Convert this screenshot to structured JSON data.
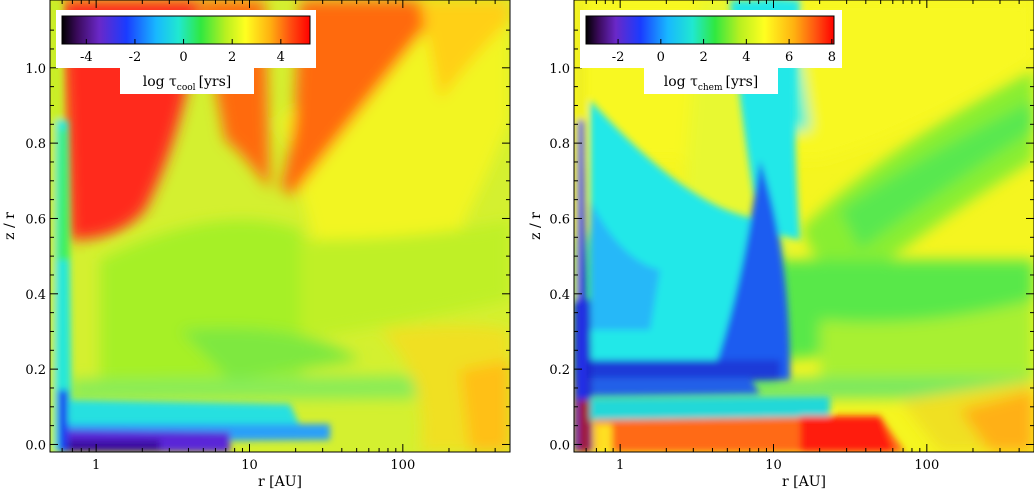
{
  "chart_data": [
    {
      "type": "heatmap",
      "title": "",
      "xlabel": "r [AU]",
      "ylabel": "z / r",
      "x_scale": "log",
      "x_ticks": [
        {
          "value": 1,
          "label": "1"
        },
        {
          "value": 10,
          "label": "10"
        },
        {
          "value": 100,
          "label": "100"
        }
      ],
      "y_ticks": [
        {
          "value": 0.0,
          "label": "0.0"
        },
        {
          "value": 0.2,
          "label": "0.2"
        },
        {
          "value": 0.4,
          "label": "0.4"
        },
        {
          "value": 0.6,
          "label": "0.6"
        },
        {
          "value": 0.8,
          "label": "0.8"
        },
        {
          "value": 1.0,
          "label": "1.0"
        }
      ],
      "xlim": [
        0.5,
        500
      ],
      "ylim": [
        -0.02,
        1.18
      ],
      "colorbar": {
        "label_main": "log τ",
        "label_sub": "cool",
        "label_unit": "[yrs]",
        "range": [
          -5,
          5.2
        ],
        "ticks": [
          {
            "value": -4,
            "label": "-4"
          },
          {
            "value": -2,
            "label": "-2"
          },
          {
            "value": 0,
            "label": "0"
          },
          {
            "value": 2,
            "label": "2"
          },
          {
            "value": 4,
            "label": "4"
          }
        ],
        "placement": "top-left"
      },
      "regions": [
        {
          "name": "upper-left",
          "value": 4.5,
          "color": "#ff2a1a"
        },
        {
          "name": "upper-right-wedge",
          "value": 3.6,
          "color": "#ff6a10"
        },
        {
          "name": "middle",
          "value": 1.5,
          "color": "#9ff020"
        },
        {
          "name": "midplane-streak",
          "value": -3,
          "color": "#5a22d8"
        },
        {
          "name": "inner-column",
          "value": 0,
          "color": "#20e6d0"
        }
      ]
    },
    {
      "type": "heatmap",
      "title": "",
      "xlabel": "r [AU]",
      "ylabel": "z / r",
      "x_scale": "log",
      "x_ticks": [
        {
          "value": 1,
          "label": "1"
        },
        {
          "value": 10,
          "label": "10"
        },
        {
          "value": 100,
          "label": "100"
        }
      ],
      "y_ticks": [
        {
          "value": 0.0,
          "label": "0.0"
        },
        {
          "value": 0.2,
          "label": "0.2"
        },
        {
          "value": 0.4,
          "label": "0.4"
        },
        {
          "value": 0.6,
          "label": "0.6"
        },
        {
          "value": 0.8,
          "label": "0.8"
        },
        {
          "value": 1.0,
          "label": "1.0"
        }
      ],
      "xlim": [
        0.5,
        500
      ],
      "ylim": [
        -0.02,
        1.18
      ],
      "colorbar": {
        "label_main": "log τ",
        "label_sub": "chem",
        "label_unit": "[yrs]",
        "range": [
          -3.5,
          8.1
        ],
        "ticks": [
          {
            "value": -2,
            "label": "-2"
          },
          {
            "value": 0,
            "label": "0"
          },
          {
            "value": 2,
            "label": "2"
          },
          {
            "value": 4,
            "label": "4"
          },
          {
            "value": 6,
            "label": "6"
          },
          {
            "value": 8,
            "label": "8"
          }
        ],
        "placement": "top-left"
      },
      "regions": [
        {
          "name": "upper",
          "value": 4.5,
          "color": "#f5f520"
        },
        {
          "name": "central-column",
          "value": 1.5,
          "color": "#30e8e0"
        },
        {
          "name": "dark-blue-core",
          "value": -0.5,
          "color": "#2040e0"
        },
        {
          "name": "midplane-hot",
          "value": 7.2,
          "color": "#ff2a10"
        }
      ]
    }
  ]
}
